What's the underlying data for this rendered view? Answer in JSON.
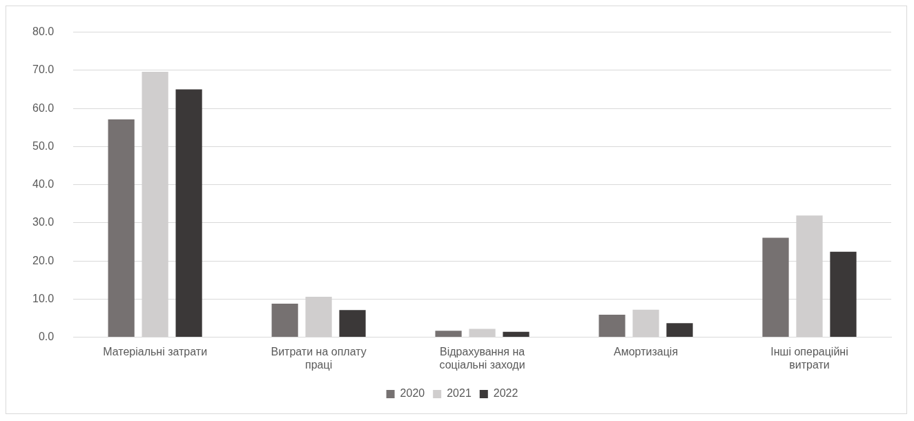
{
  "chart_data": {
    "type": "bar",
    "categories": [
      "Матеріальні затрати",
      "Витрати на оплату праці",
      "Відрахування на соціальні заходи",
      "Амортизація",
      "Інші операційні витрати"
    ],
    "series": [
      {
        "name": "2020",
        "color": "#767171",
        "values": [
          57.1,
          8.8,
          1.7,
          5.9,
          26.1
        ]
      },
      {
        "name": "2021",
        "color": "#d0cece",
        "values": [
          69.6,
          10.6,
          2.2,
          7.2,
          31.9
        ]
      },
      {
        "name": "2022",
        "color": "#3b3838",
        "values": [
          65.0,
          7.1,
          1.4,
          3.7,
          22.4
        ]
      }
    ],
    "ylim": [
      0,
      80
    ],
    "yticks": [
      {
        "value": 0,
        "label": "0.0"
      },
      {
        "value": 10,
        "label": "10.0"
      },
      {
        "value": 20,
        "label": "20.0"
      },
      {
        "value": 30,
        "label": "30.0"
      },
      {
        "value": 40,
        "label": "40.0"
      },
      {
        "value": 50,
        "label": "50.0"
      },
      {
        "value": 60,
        "label": "60.0"
      },
      {
        "value": 70,
        "label": "70.0"
      },
      {
        "value": 80,
        "label": "80.0"
      }
    ],
    "grid": "y",
    "legend": "bottom"
  }
}
